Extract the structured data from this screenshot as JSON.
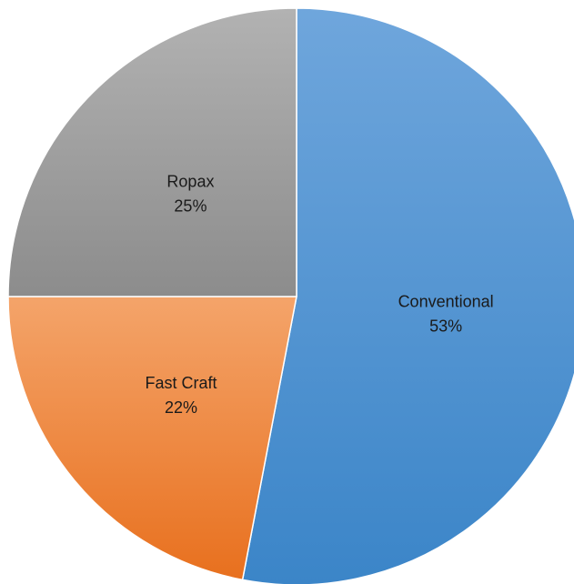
{
  "chart_data": {
    "type": "pie",
    "title": "",
    "start_angle_deg": 0,
    "direction": "clockwise",
    "slices": [
      {
        "label": "Conventional",
        "value": 53,
        "value_label": "53%",
        "color_light": "#6fa6dc",
        "color_dark": "#3b85c8"
      },
      {
        "label": "Fast Craft",
        "value": 22,
        "value_label": "22%",
        "color_light": "#f4a46a",
        "color_dark": "#e8701e"
      },
      {
        "label": "Ropax",
        "value": 25,
        "value_label": "25%",
        "color_light": "#b2b2b2",
        "color_dark": "#8c8c8c"
      }
    ],
    "legend": "none",
    "data_labels": "inside"
  }
}
